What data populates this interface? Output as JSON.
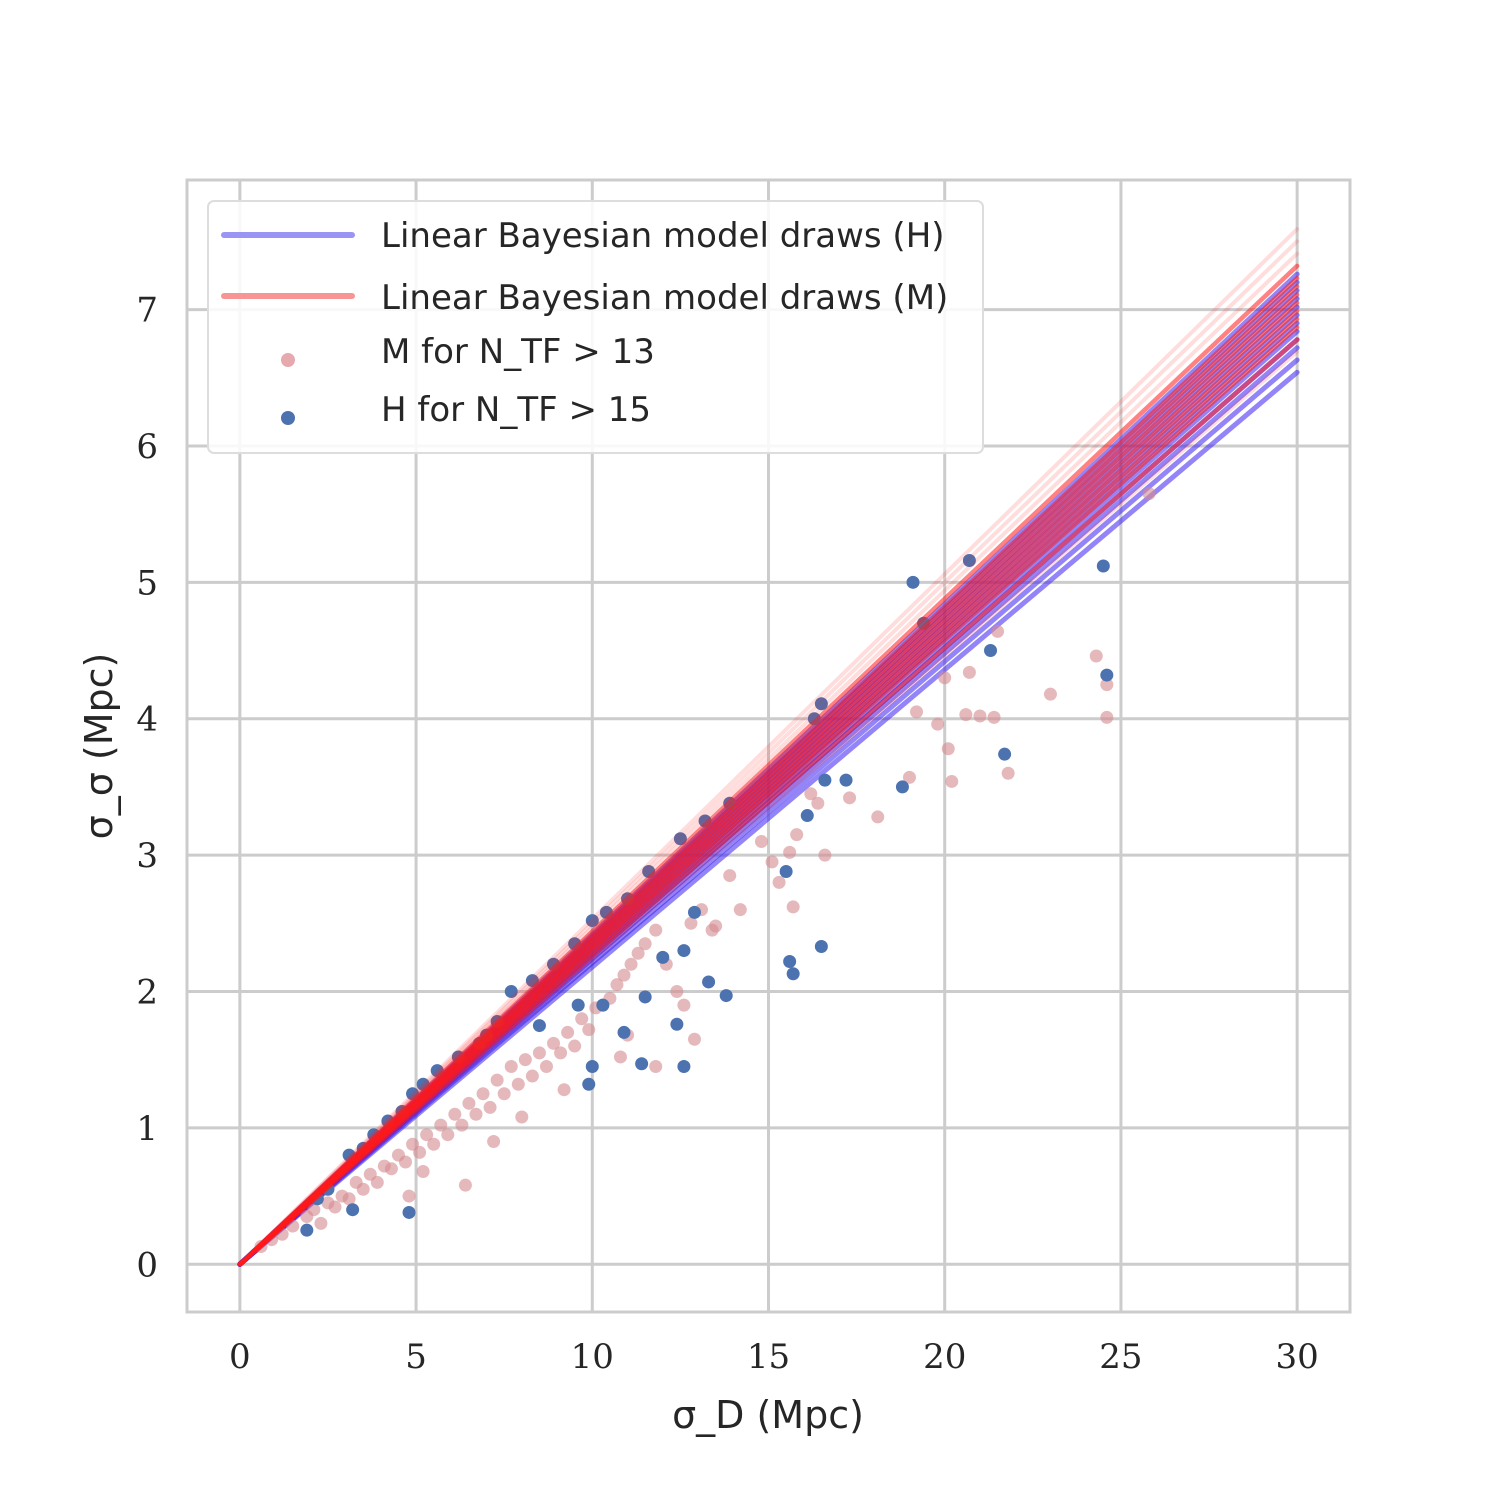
{
  "chart_data": {
    "type": "scatter",
    "xlabel": "σ_D (Mpc)",
    "ylabel": "σ_σ (Mpc)",
    "xlim": [
      -1.5,
      31.5
    ],
    "ylim": [
      -0.35,
      7.95
    ],
    "xticks": [
      "0",
      "5",
      "10",
      "15",
      "20",
      "25",
      "30"
    ],
    "yticks": [
      "0",
      "1",
      "2",
      "3",
      "4",
      "5",
      "6",
      "7"
    ],
    "grid": true,
    "legend_position": "upper-left",
    "colors": {
      "h_lines": "#3b1ff0",
      "m_lines": "#ff1a1a",
      "m_points": "#d48a8f",
      "h_points": "#4c72b0",
      "grid": "#cccccc",
      "frame": "#cccccc"
    },
    "lines": {
      "x_range": [
        0,
        30
      ],
      "h_slopes": [
        0.218,
        0.221,
        0.224,
        0.226,
        0.228,
        0.23,
        0.232,
        0.234,
        0.236,
        0.238,
        0.24,
        0.242
      ],
      "m_slopes": [
        0.223,
        0.226,
        0.229,
        0.231,
        0.233,
        0.235,
        0.237,
        0.239,
        0.241,
        0.244,
        0.247,
        0.25,
        0.253
      ]
    },
    "legend": [
      {
        "label": "Linear Bayesian model draws (H)",
        "kind": "line",
        "color": "#9a94f4"
      },
      {
        "label": "Linear Bayesian model draws (M)",
        "kind": "line",
        "color": "#f79494"
      },
      {
        "label": "M for N_TF > 13",
        "kind": "point",
        "color": "#e6a9ae"
      },
      {
        "label": "H for N_TF > 15",
        "kind": "point",
        "color": "#4c72b0"
      }
    ],
    "series": [
      {
        "name": "M for N_TF > 13",
        "points": [
          [
            0.6,
            0.13
          ],
          [
            0.9,
            0.18
          ],
          [
            1.2,
            0.22
          ],
          [
            1.5,
            0.28
          ],
          [
            1.9,
            0.35
          ],
          [
            2.1,
            0.4
          ],
          [
            2.3,
            0.3
          ],
          [
            2.5,
            0.45
          ],
          [
            2.7,
            0.42
          ],
          [
            2.9,
            0.5
          ],
          [
            3.1,
            0.48
          ],
          [
            3.3,
            0.6
          ],
          [
            3.5,
            0.55
          ],
          [
            3.7,
            0.66
          ],
          [
            3.9,
            0.6
          ],
          [
            4.1,
            0.72
          ],
          [
            4.3,
            0.7
          ],
          [
            4.5,
            0.8
          ],
          [
            4.7,
            0.75
          ],
          [
            4.9,
            0.88
          ],
          [
            5.1,
            0.82
          ],
          [
            5.3,
            0.95
          ],
          [
            5.5,
            0.88
          ],
          [
            5.7,
            1.02
          ],
          [
            5.9,
            0.95
          ],
          [
            6.1,
            1.1
          ],
          [
            6.3,
            1.02
          ],
          [
            6.5,
            1.18
          ],
          [
            6.7,
            1.1
          ],
          [
            6.9,
            1.25
          ],
          [
            7.1,
            1.15
          ],
          [
            7.3,
            1.35
          ],
          [
            7.5,
            1.25
          ],
          [
            7.7,
            1.45
          ],
          [
            7.9,
            1.32
          ],
          [
            8.1,
            1.5
          ],
          [
            8.3,
            1.38
          ],
          [
            8.5,
            1.55
          ],
          [
            8.7,
            1.45
          ],
          [
            8.9,
            1.62
          ],
          [
            9.1,
            1.55
          ],
          [
            9.3,
            1.7
          ],
          [
            9.5,
            1.6
          ],
          [
            9.7,
            1.8
          ],
          [
            9.9,
            1.72
          ],
          [
            10.1,
            1.88
          ],
          [
            10.3,
            1.9
          ],
          [
            10.5,
            1.95
          ],
          [
            10.7,
            2.05
          ],
          [
            10.9,
            2.12
          ],
          [
            11.1,
            2.2
          ],
          [
            11.3,
            2.28
          ],
          [
            11.5,
            2.35
          ],
          [
            11.8,
            2.45
          ],
          [
            12.1,
            2.2
          ],
          [
            12.4,
            2.0
          ],
          [
            12.8,
            2.5
          ],
          [
            13.1,
            2.6
          ],
          [
            13.4,
            2.45
          ],
          [
            13.9,
            2.85
          ],
          [
            14.2,
            2.6
          ],
          [
            14.8,
            3.1
          ],
          [
            15.1,
            2.95
          ],
          [
            15.3,
            2.8
          ],
          [
            15.6,
            3.02
          ],
          [
            15.7,
            2.62
          ],
          [
            15.8,
            3.15
          ],
          [
            16.2,
            3.45
          ],
          [
            16.4,
            3.38
          ],
          [
            16.6,
            3.0
          ],
          [
            17.3,
            3.42
          ],
          [
            18.1,
            3.28
          ],
          [
            19.0,
            3.57
          ],
          [
            19.2,
            4.05
          ],
          [
            19.8,
            3.96
          ],
          [
            20.0,
            4.3
          ],
          [
            20.1,
            3.78
          ],
          [
            20.2,
            3.54
          ],
          [
            20.6,
            4.03
          ],
          [
            20.7,
            4.34
          ],
          [
            21.0,
            4.02
          ],
          [
            21.4,
            4.01
          ],
          [
            21.5,
            4.64
          ],
          [
            21.8,
            3.6
          ],
          [
            23.0,
            4.18
          ],
          [
            24.3,
            4.46
          ],
          [
            24.6,
            4.25
          ],
          [
            24.6,
            4.01
          ],
          [
            25.8,
            5.65
          ],
          [
            6.4,
            0.58
          ],
          [
            5.2,
            0.68
          ],
          [
            4.8,
            0.5
          ],
          [
            7.2,
            0.9
          ],
          [
            8.0,
            1.08
          ],
          [
            9.2,
            1.28
          ],
          [
            10.8,
            1.52
          ],
          [
            11.0,
            1.68
          ],
          [
            12.9,
            1.65
          ],
          [
            11.8,
            1.45
          ],
          [
            13.5,
            2.48
          ],
          [
            12.6,
            1.9
          ]
        ]
      },
      {
        "name": "H for N_TF > 15",
        "points": [
          [
            1.9,
            0.25
          ],
          [
            2.2,
            0.48
          ],
          [
            2.5,
            0.55
          ],
          [
            3.1,
            0.8
          ],
          [
            3.5,
            0.85
          ],
          [
            3.8,
            0.95
          ],
          [
            4.2,
            1.05
          ],
          [
            4.6,
            1.12
          ],
          [
            4.9,
            1.25
          ],
          [
            5.2,
            1.32
          ],
          [
            5.6,
            1.42
          ],
          [
            6.2,
            1.52
          ],
          [
            6.8,
            1.62
          ],
          [
            7.0,
            1.68
          ],
          [
            7.3,
            1.78
          ],
          [
            7.7,
            2.0
          ],
          [
            8.3,
            2.08
          ],
          [
            8.9,
            2.2
          ],
          [
            9.5,
            2.35
          ],
          [
            10.0,
            2.52
          ],
          [
            10.4,
            2.58
          ],
          [
            11.0,
            2.68
          ],
          [
            11.6,
            2.88
          ],
          [
            12.5,
            3.12
          ],
          [
            13.2,
            3.25
          ],
          [
            13.9,
            3.38
          ],
          [
            4.8,
            0.38
          ],
          [
            3.2,
            0.4
          ],
          [
            9.9,
            1.32
          ],
          [
            10.0,
            1.45
          ],
          [
            10.3,
            1.9
          ],
          [
            10.9,
            1.7
          ],
          [
            11.4,
            1.47
          ],
          [
            11.5,
            1.96
          ],
          [
            12.0,
            2.25
          ],
          [
            12.6,
            1.45
          ],
          [
            12.9,
            2.58
          ],
          [
            13.3,
            2.07
          ],
          [
            13.8,
            1.97
          ],
          [
            15.6,
            2.22
          ],
          [
            15.7,
            2.13
          ],
          [
            16.5,
            2.33
          ],
          [
            15.5,
            2.88
          ],
          [
            16.1,
            3.29
          ],
          [
            17.2,
            3.55
          ],
          [
            18.8,
            3.5
          ],
          [
            19.1,
            5.0
          ],
          [
            19.4,
            4.7
          ],
          [
            20.7,
            5.16
          ],
          [
            21.3,
            4.5
          ],
          [
            21.7,
            3.74
          ],
          [
            24.5,
            5.12
          ],
          [
            24.6,
            4.32
          ],
          [
            16.3,
            4.0
          ],
          [
            16.5,
            4.11
          ],
          [
            16.6,
            3.55
          ],
          [
            12.4,
            1.76
          ],
          [
            12.6,
            2.3
          ],
          [
            9.6,
            1.9
          ],
          [
            8.5,
            1.75
          ]
        ]
      }
    ]
  }
}
